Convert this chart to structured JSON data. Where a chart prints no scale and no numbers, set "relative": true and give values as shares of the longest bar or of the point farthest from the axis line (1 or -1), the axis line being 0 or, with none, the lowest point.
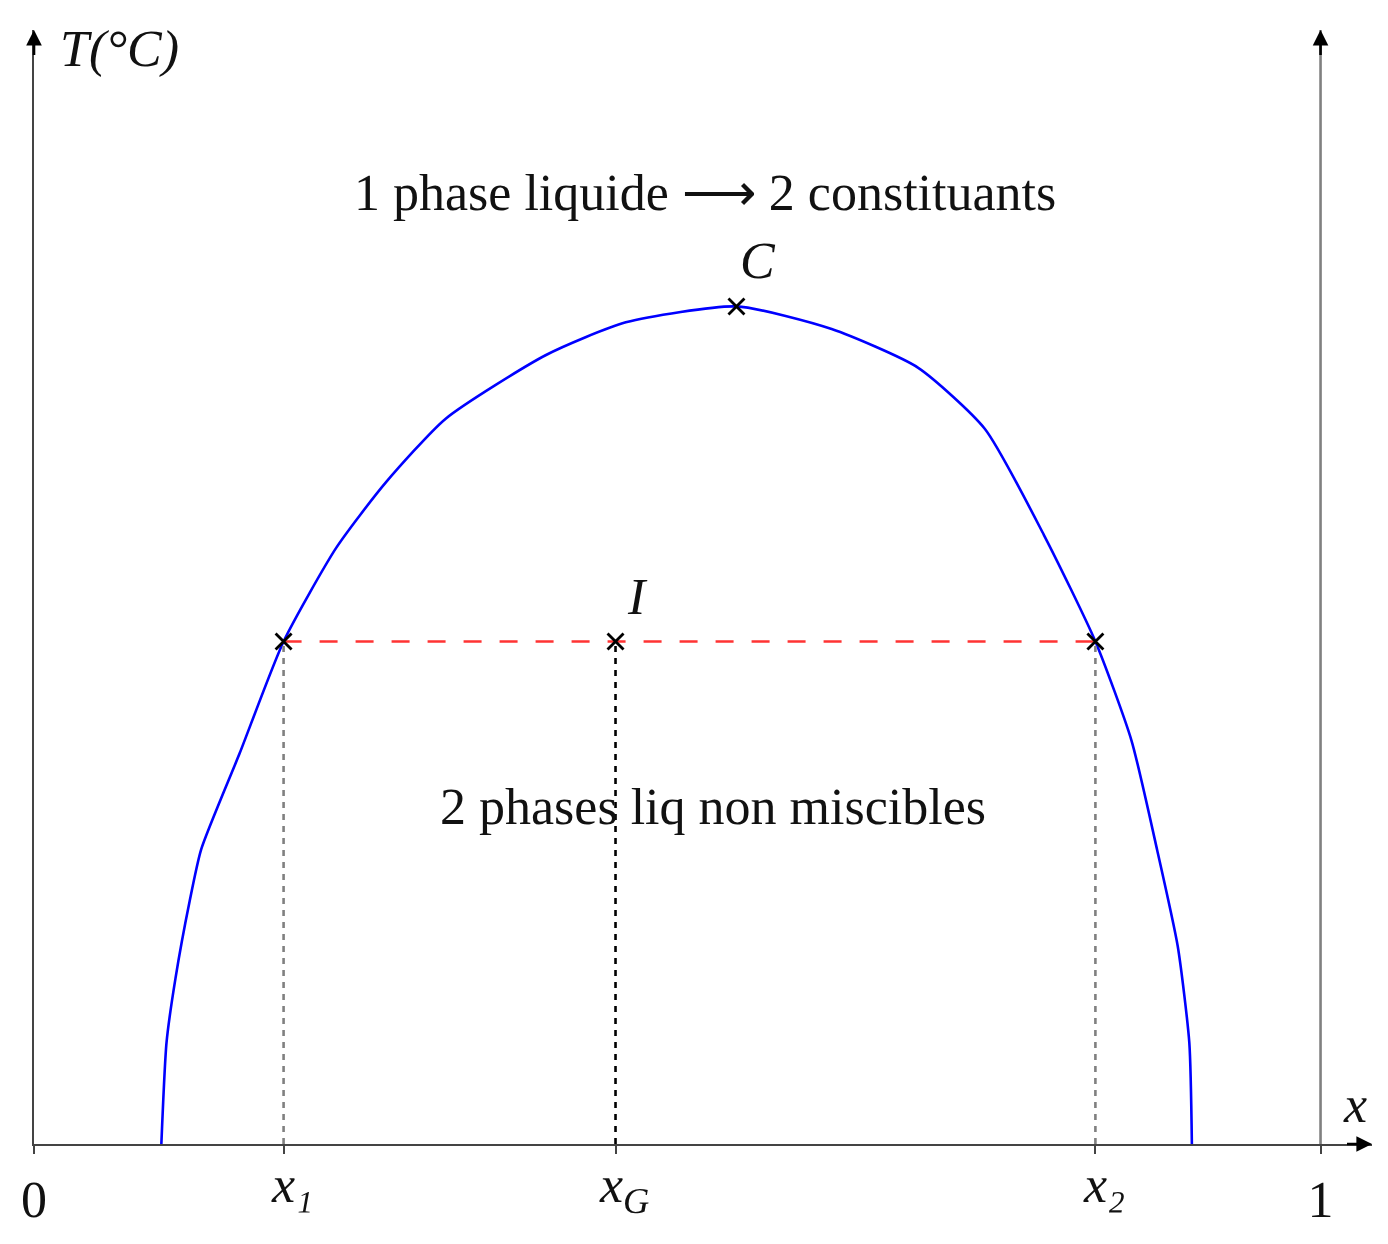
{
  "chart_data": {
    "type": "line",
    "relative": true,
    "xlabel": "x",
    "xlim": [
      0,
      1.04
    ],
    "xticks": [
      0,
      {
        "value": 0.194,
        "label": null
      },
      {
        "value": 0.452,
        "label": null
      },
      {
        "value": 0.825,
        "label": null
      },
      1
    ],
    "tick_labels": "x",
    "series": [
      {
        "color": "#0000ff",
        "marker": "none",
        "line_style": "solid",
        "x": [
          0.099,
          0.103,
          0.11,
          0.121,
          0.13,
          0.16,
          0.194,
          0.235,
          0.273,
          0.32,
          0.398,
          0.46,
          0.546,
          0.62,
          0.687,
          0.739,
          0.785,
          0.825,
          0.853,
          0.873,
          0.889,
          0.898,
          0.9
        ],
        "values": [
          0,
          0.121,
          0.198,
          0.29,
          0.352,
          0.467,
          0.6,
          0.712,
          0.789,
          0.866,
          0.942,
          0.981,
          1.0,
          0.973,
          0.927,
          0.854,
          0.727,
          0.6,
          0.482,
          0.351,
          0.236,
          0.121,
          0
        ]
      },
      {
        "color": "#ff3333",
        "marker": "none",
        "line_style": "dashed",
        "x": [
          0.194,
          0.825
        ],
        "values": [
          0.6,
          0.6
        ]
      },
      {
        "color": "#808080",
        "marker": "none",
        "line_style": "dotted",
        "x": [
          0.194,
          0.194
        ],
        "values": [
          0,
          0.6
        ]
      },
      {
        "color": "#000000",
        "marker": "none",
        "line_style": "dotted",
        "x": [
          0.452,
          0.452
        ],
        "values": [
          0,
          0.6
        ]
      },
      {
        "color": "#808080",
        "marker": "none",
        "line_style": "dotted",
        "x": [
          0.825,
          0.825
        ],
        "values": [
          0,
          0.6
        ]
      },
      {
        "type": "scatter",
        "color": "#000000",
        "marker": "cross",
        "x": [
          0.546,
          0.194,
          0.452,
          0.825
        ],
        "values": [
          1.0,
          0.6,
          0.6,
          0.6
        ]
      }
    ],
    "ref_lines": [
      {
        "axis": "x",
        "value": 1,
        "color": "#808080"
      }
    ],
    "annotations": [
      "T(°C)",
      "1 phase liquide ⟶ 2 constituants",
      "2 phases liq non miscibles",
      {
        "text": "C",
        "x": 0.546,
        "y": 1.0
      },
      {
        "text": "I",
        "x": 0.452,
        "y": 0.6
      },
      {
        "text": "x₁",
        "x": 0.194,
        "y": 0
      },
      {
        "text": "x$_{G}$",
        "x": 0.452,
        "y": 0
      },
      {
        "text": "x₂",
        "x": 0.825,
        "y": 0
      }
    ]
  }
}
